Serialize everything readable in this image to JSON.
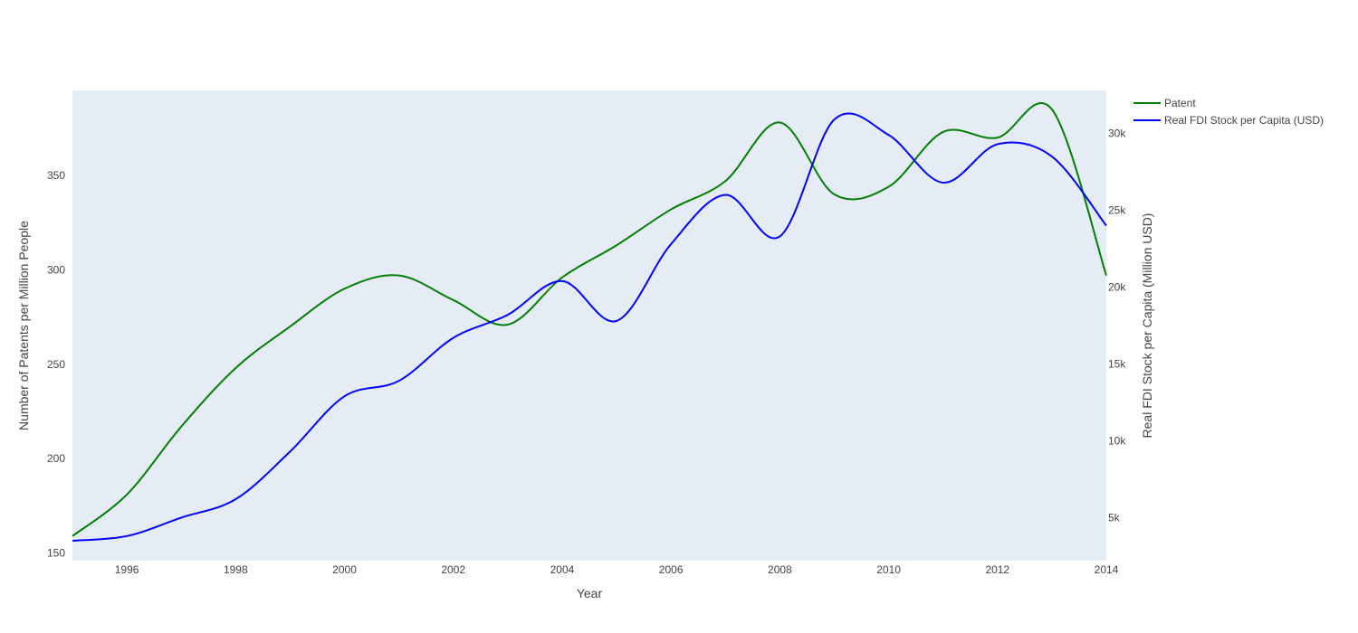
{
  "chart_data": {
    "type": "line",
    "xlabel": "Year",
    "ylabel": "Number of Patents per Million People",
    "y2label": "Real FDI Stock  per Capita (Million USD)",
    "xlim": [
      1995,
      2014
    ],
    "ylim": [
      146,
      395
    ],
    "y2lim": [
      2200,
      32800
    ],
    "x_ticks": [
      1996,
      1998,
      2000,
      2002,
      2004,
      2006,
      2008,
      2010,
      2012,
      2014
    ],
    "y_ticks": [
      150,
      200,
      250,
      300,
      350
    ],
    "y2_ticks": [
      5000,
      10000,
      15000,
      20000,
      25000,
      30000
    ],
    "y2_tick_labels": [
      "5k",
      "10k",
      "15k",
      "20k",
      "25k",
      "30k"
    ],
    "legend_position": "top-right, outside plot",
    "plot_background": "#e5ecf6",
    "grid": false,
    "line_shape": "spline",
    "x": [
      1995,
      1996,
      1997,
      1998,
      1999,
      2000,
      2001,
      2002,
      2003,
      2004,
      2005,
      2006,
      2007,
      2008,
      2009,
      2010,
      2011,
      2012,
      2013,
      2014
    ],
    "series": [
      {
        "name": "Patent",
        "axis": "y",
        "color": "#008000",
        "values": [
          159,
          181,
          217,
          248,
          270,
          290,
          297,
          284,
          271,
          296,
          313,
          332,
          347,
          378,
          340,
          344,
          373,
          370,
          385,
          297
        ]
      },
      {
        "name": "Real FDI Stock per Capita (USD)",
        "axis": "y2",
        "color": "#0000ff",
        "values": [
          3500,
          3800,
          5000,
          6200,
          9300,
          12900,
          13900,
          16700,
          18200,
          20400,
          17800,
          22800,
          26000,
          23300,
          30900,
          29900,
          26800,
          29300,
          28500,
          24000
        ]
      }
    ]
  }
}
